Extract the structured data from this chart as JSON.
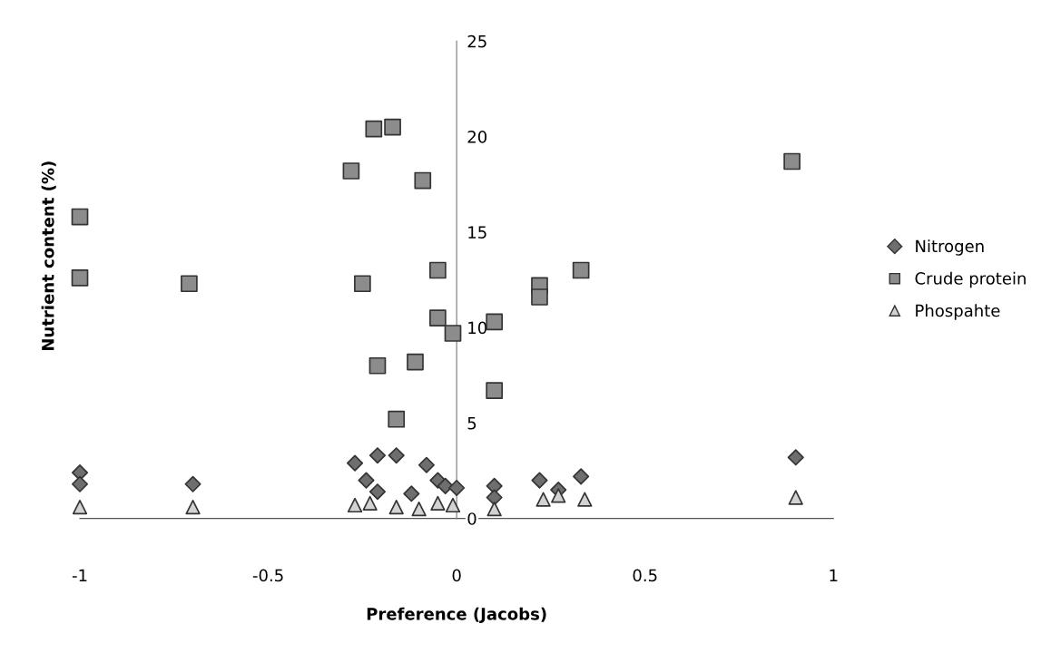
{
  "chart_data": {
    "type": "scatter",
    "xlabel": "Preference (Jacobs)",
    "ylabel": "Nutrient content (%)",
    "xlim": [
      -1,
      1
    ],
    "xticks": [
      -1,
      -0.5,
      0,
      0.5,
      1
    ],
    "ylim": [
      0,
      25
    ],
    "yticks": [
      0,
      5,
      10,
      15,
      20,
      25
    ],
    "legend": "right",
    "series": [
      {
        "name": "Nitrogen",
        "color": "#6e6e6e",
        "marker": "diamond",
        "x": [
          -1.0,
          -1.0,
          -0.7,
          -0.27,
          -0.21,
          -0.16,
          -0.08,
          -0.24,
          -0.12,
          -0.21,
          -0.05,
          -0.03,
          0.0,
          0.1,
          0.1,
          0.22,
          0.27,
          0.33,
          0.9
        ],
        "values": [
          2.4,
          1.8,
          1.8,
          2.9,
          3.3,
          3.3,
          2.8,
          2.0,
          1.3,
          1.4,
          2.0,
          1.7,
          1.6,
          1.7,
          1.1,
          2.0,
          1.5,
          2.2,
          3.2
        ]
      },
      {
        "name": "Crude protein",
        "color": "#8c8c8c",
        "marker": "square",
        "x": [
          -1.0,
          -1.0,
          -0.71,
          -0.28,
          -0.22,
          -0.17,
          -0.09,
          -0.25,
          -0.05,
          -0.05,
          -0.01,
          -0.21,
          -0.11,
          -0.16,
          0.1,
          0.1,
          0.22,
          0.22,
          0.33,
          0.89
        ],
        "values": [
          15.8,
          12.6,
          12.3,
          18.2,
          20.4,
          20.5,
          17.7,
          12.3,
          13.0,
          10.5,
          9.7,
          8.0,
          8.2,
          5.2,
          10.3,
          6.7,
          12.2,
          11.6,
          13.0,
          18.7
        ]
      },
      {
        "name": "Phospahte",
        "color": "#d2d2d2",
        "marker": "triangle",
        "x": [
          -1.0,
          -0.7,
          -0.27,
          -0.23,
          -0.16,
          -0.1,
          -0.05,
          -0.01,
          0.1,
          0.23,
          0.27,
          0.34,
          0.9
        ],
        "values": [
          0.6,
          0.6,
          0.7,
          0.8,
          0.6,
          0.5,
          0.8,
          0.7,
          0.5,
          1.0,
          1.2,
          1.0,
          1.1
        ]
      }
    ]
  }
}
